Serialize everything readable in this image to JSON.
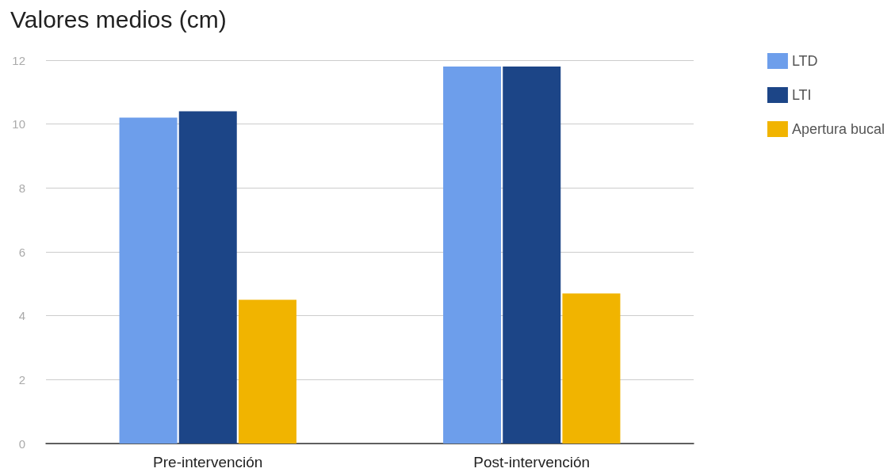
{
  "chart_data": {
    "type": "bar",
    "title": "Valores medios (cm)",
    "categories": [
      "Pre-intervención",
      "Post-intervención"
    ],
    "series": [
      {
        "name": "LTD",
        "color": "#6d9eeb",
        "values": [
          10.2,
          11.8
        ]
      },
      {
        "name": "LTI",
        "color": "#1c4587",
        "values": [
          10.4,
          11.8
        ]
      },
      {
        "name": "Apertura bucal",
        "color": "#f1b400",
        "values": [
          4.5,
          4.7
        ]
      }
    ],
    "ylim": [
      0,
      12
    ],
    "yticks": [
      0,
      2,
      4,
      6,
      8,
      10,
      12
    ],
    "grid": "y",
    "legend": "top right"
  }
}
